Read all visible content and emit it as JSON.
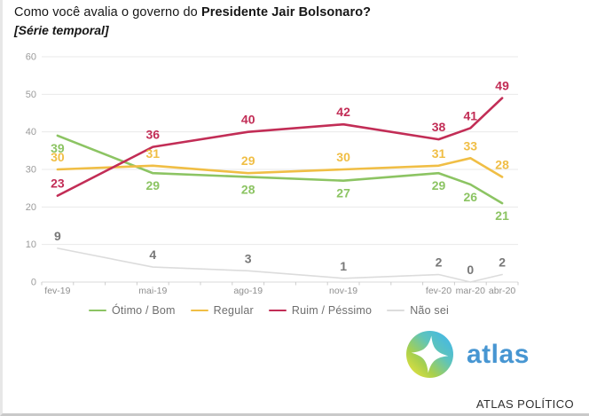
{
  "title": {
    "question_regular": "Como você avalia o governo do ",
    "question_bold": "Presidente Jair Bolsonaro?",
    "subtitle": "[Série temporal]"
  },
  "chart_data": {
    "type": "line",
    "title": "Como você avalia o governo do Presidente Jair Bolsonaro? [Série temporal]",
    "x_labels": [
      "fev-19",
      "mai-19",
      "ago-19",
      "nov-19",
      "fev-20",
      "mar-20",
      "abr-20"
    ],
    "x_months": [
      0,
      3,
      6,
      9,
      12,
      13,
      14
    ],
    "x_total_months": 15,
    "series": [
      {
        "name": "Ótimo / Bom",
        "color": "#8CC463",
        "label_color": "#8CC463",
        "values": [
          39,
          29,
          28,
          27,
          29,
          26,
          21
        ],
        "label_side": "below"
      },
      {
        "name": "Regular",
        "color": "#F0BE45",
        "label_color": "#F0BE45",
        "values": [
          30,
          31,
          29,
          30,
          31,
          33,
          28
        ],
        "label_side": "above"
      },
      {
        "name": "Ruim / Péssimo",
        "color": "#C22D56",
        "label_color": "#C22D56",
        "values": [
          23,
          36,
          40,
          42,
          38,
          41,
          49
        ],
        "label_side": "above"
      },
      {
        "name": "Não sei",
        "color": "#DCDCDC",
        "label_color": "#787878",
        "values": [
          9,
          4,
          3,
          1,
          2,
          0,
          2
        ],
        "label_side": "above"
      }
    ],
    "ylim": [
      0,
      60
    ],
    "yticks": [
      0,
      10,
      20,
      30,
      40,
      50,
      60
    ],
    "grid": true,
    "legend_position": "bottom",
    "axis_color": "#9b9b9b"
  },
  "branding": {
    "logo_text": "atlas",
    "logo_color": "#4796D2",
    "footer_text": "ATLAS POLÍTICO"
  }
}
